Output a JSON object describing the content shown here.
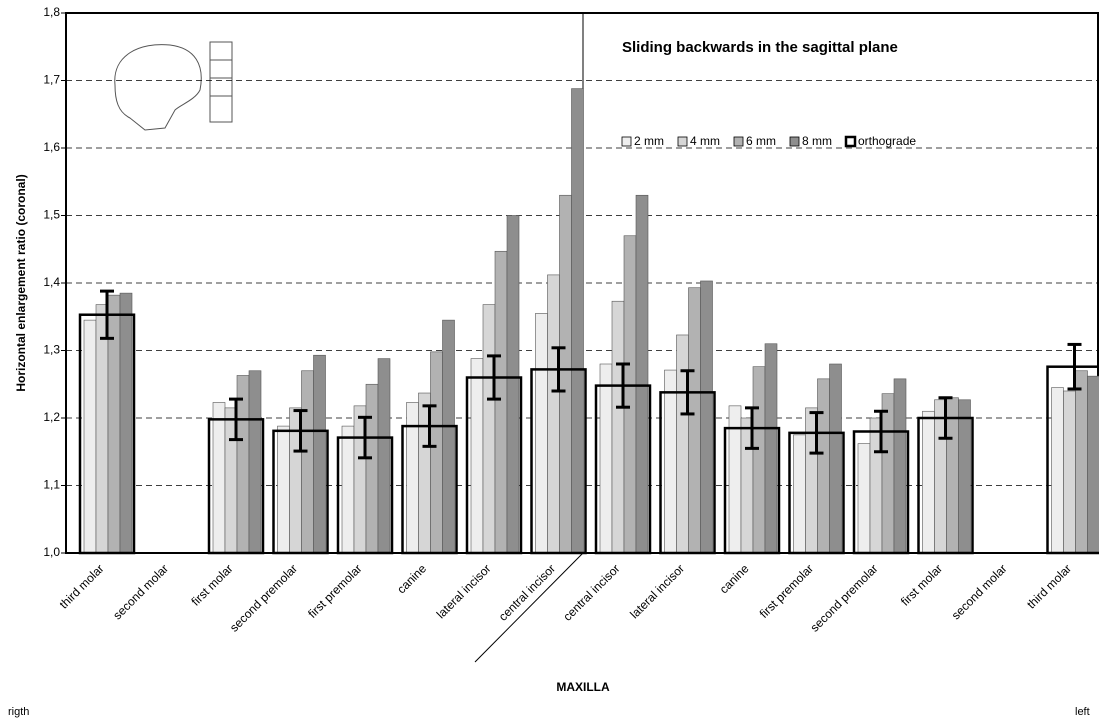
{
  "chart_data": {
    "type": "bar",
    "title": "Sliding backwards in the sagittal plane",
    "y_label": "Horizontal enlargement ratio (coronal)",
    "x_label": "MAXILLA",
    "left_note": "rigth",
    "right_note": "left",
    "categories": [
      "third molar",
      "second molar",
      "first molar",
      "second premolar",
      "first premolar",
      "canine",
      "lateral incisor",
      "central incisor",
      "central incisor",
      "lateral incisor",
      "canine",
      "first premolar",
      "second premolar",
      "first molar",
      "second molar",
      "third molar"
    ],
    "series": [
      {
        "name": "2 mm",
        "color": "#eeeeee",
        "values": [
          1.345,
          null,
          1.223,
          1.188,
          1.188,
          1.223,
          1.288,
          1.355,
          1.28,
          1.271,
          1.218,
          1.175,
          1.162,
          1.21,
          null,
          1.245
        ]
      },
      {
        "name": "4 mm",
        "color": "#d6d6d6",
        "values": [
          1.368,
          null,
          1.215,
          1.215,
          1.218,
          1.237,
          1.368,
          1.412,
          1.373,
          1.323,
          1.2,
          1.215,
          1.2,
          1.227,
          null,
          1.24
        ]
      },
      {
        "name": "6 mm",
        "color": "#b2b2b2",
        "values": [
          1.382,
          null,
          1.263,
          1.27,
          1.25,
          1.298,
          1.447,
          1.53,
          1.47,
          1.393,
          1.276,
          1.258,
          1.236,
          1.23,
          null,
          1.27
        ]
      },
      {
        "name": "8 mm",
        "color": "#8e8e8e",
        "values": [
          1.385,
          null,
          1.27,
          1.293,
          1.288,
          1.345,
          1.5,
          1.688,
          1.53,
          1.403,
          1.31,
          1.28,
          1.258,
          1.227,
          null,
          1.262
        ]
      },
      {
        "name": "orthograde",
        "color": "#000000",
        "outline": true,
        "values": [
          1.353,
          null,
          1.198,
          1.181,
          1.171,
          1.188,
          1.26,
          1.272,
          1.248,
          1.238,
          1.185,
          1.178,
          1.18,
          1.2,
          null,
          1.276
        ],
        "errors": [
          0.035,
          null,
          0.03,
          0.03,
          0.03,
          0.03,
          0.032,
          0.032,
          0.032,
          0.032,
          0.03,
          0.03,
          0.03,
          0.03,
          null,
          0.033
        ]
      }
    ],
    "ylim": [
      1.0,
      1.8
    ],
    "yticks": [
      {
        "value": 1.0,
        "label": "1,0"
      },
      {
        "value": 1.1,
        "label": "1,1"
      },
      {
        "value": 1.2,
        "label": "1,2"
      },
      {
        "value": 1.3,
        "label": "1,3"
      },
      {
        "value": 1.4,
        "label": "1,4"
      },
      {
        "value": 1.5,
        "label": "1,5"
      },
      {
        "value": 1.6,
        "label": "1,6"
      },
      {
        "value": 1.7,
        "label": "1,7"
      },
      {
        "value": 1.8,
        "label": "1,8"
      }
    ],
    "grid": true
  }
}
